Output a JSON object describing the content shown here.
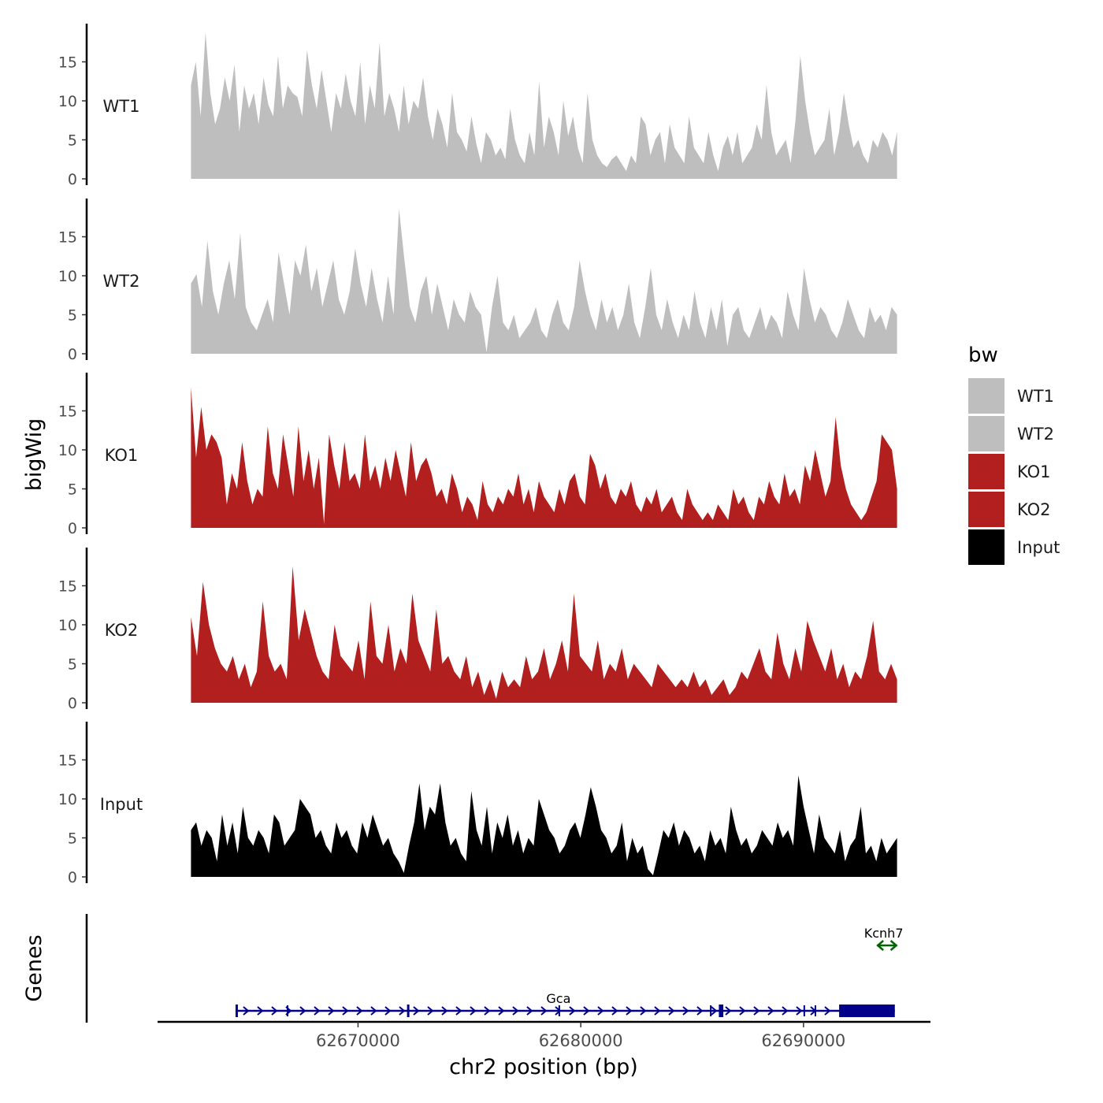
{
  "chart_data": {
    "type": "area",
    "xlabel": "chr2 position (bp)",
    "ylabel": "bigWig",
    "genes_label": "Genes",
    "xlim": [
      62661000,
      62695700
    ],
    "x_ticks": [
      {
        "value": 62670000,
        "label": "62670000"
      },
      {
        "value": 62680000,
        "label": "62680000"
      },
      {
        "value": 62690000,
        "label": "62690000"
      }
    ],
    "ylim": [
      0,
      20
    ],
    "y_ticks": [
      {
        "value": 0,
        "label": "0"
      },
      {
        "value": 5,
        "label": "5"
      },
      {
        "value": 10,
        "label": "10"
      },
      {
        "value": 15,
        "label": "15"
      }
    ],
    "x_start": 62662500,
    "x_end": 62694200,
    "legend": {
      "title": "bw",
      "items": [
        {
          "label": "WT1",
          "color": "#bebebe"
        },
        {
          "label": "WT2",
          "color": "#bebebe"
        },
        {
          "label": "KO1",
          "color": "#b21f1f"
        },
        {
          "label": "KO2",
          "color": "#b21f1f"
        },
        {
          "label": "Input",
          "color": "#000000"
        }
      ]
    },
    "series": [
      {
        "name": "WT1",
        "color": "#bebebe",
        "values": [
          12,
          15,
          8,
          18.8,
          11,
          7,
          9,
          13,
          10,
          14.7,
          6,
          12,
          9,
          11,
          7,
          13,
          9.5,
          8,
          15.8,
          9,
          12,
          11,
          10.5,
          8,
          16.5,
          12,
          9,
          14,
          10,
          6,
          11,
          9,
          13.5,
          10,
          8,
          15,
          7,
          12,
          9,
          17.5,
          8,
          11,
          9,
          6,
          12,
          7,
          10,
          9,
          13,
          8,
          5,
          9,
          7,
          4,
          11,
          6,
          5,
          3.5,
          8,
          4.5,
          2,
          6,
          5,
          3,
          4,
          2.5,
          9,
          5,
          3,
          2,
          6,
          3,
          12.5,
          4,
          8,
          6,
          3,
          10,
          5.5,
          8,
          4,
          2,
          11,
          5,
          3,
          2,
          1.5,
          2.5,
          3,
          2,
          1,
          3,
          2,
          8,
          7,
          3,
          5,
          6,
          2,
          7,
          4,
          3,
          2,
          8,
          4,
          3,
          2,
          6,
          3,
          1,
          4,
          5.5,
          3,
          6,
          2,
          3,
          4,
          7,
          5,
          12,
          6,
          3,
          4,
          5,
          2,
          7.5,
          15.8,
          10,
          6,
          3,
          4,
          5,
          9,
          3,
          6,
          11,
          7,
          4,
          5,
          3,
          2,
          5,
          4,
          6,
          5,
          3,
          6
        ]
      },
      {
        "name": "WT2",
        "color": "#bebebe",
        "values": [
          9,
          10.2,
          6,
          14.5,
          8,
          5,
          9,
          12,
          7,
          15.5,
          6,
          4,
          3,
          5,
          7,
          4,
          13,
          9,
          5,
          12,
          10,
          14,
          8,
          11,
          6,
          9,
          12,
          7,
          5,
          8,
          13.5,
          9,
          6,
          11,
          7,
          4,
          10,
          5,
          18.6,
          12,
          6,
          4,
          8,
          10,
          5,
          9,
          6,
          3,
          7,
          5,
          4,
          8,
          6,
          5,
          0.2,
          6,
          10,
          4,
          3,
          5,
          2,
          3,
          4,
          6,
          3,
          2,
          5,
          7,
          4,
          3,
          6,
          12,
          8,
          5,
          3,
          7,
          4,
          6,
          3,
          5,
          9,
          4,
          2,
          6,
          11,
          5,
          3,
          7,
          4,
          2,
          5,
          3,
          8,
          4,
          2,
          6,
          3,
          7,
          1,
          5,
          6,
          3,
          2,
          4,
          6,
          3,
          5,
          4,
          2,
          8,
          5,
          3,
          11,
          7,
          4,
          6,
          5,
          3,
          2,
          4,
          7,
          5,
          3,
          2,
          6,
          4,
          5,
          3,
          6,
          5
        ]
      },
      {
        "name": "KO1",
        "color": "#b21f1f",
        "values": [
          18,
          9,
          15.5,
          10,
          12,
          11,
          9,
          3,
          7,
          5,
          11,
          6,
          3,
          5,
          4,
          13,
          7,
          5,
          12,
          8,
          4,
          13,
          6,
          10,
          5,
          9,
          0.5,
          12,
          8,
          5,
          11,
          6,
          7,
          5,
          12,
          6,
          8,
          5,
          9,
          6,
          10,
          7,
          4,
          11,
          6,
          8,
          9,
          7,
          4,
          5,
          3,
          7,
          5,
          2,
          4,
          3,
          1,
          6,
          3,
          2,
          4,
          3,
          5,
          4,
          7,
          3,
          5,
          2,
          6,
          4,
          3,
          2,
          5,
          3,
          6,
          7,
          4,
          3,
          9.5,
          8,
          5,
          7,
          4,
          3,
          5,
          4,
          6,
          3,
          2,
          4,
          3,
          5,
          2,
          3,
          4,
          2,
          1,
          5,
          3,
          2,
          1,
          2,
          1,
          3,
          2,
          1,
          5,
          3,
          4,
          2,
          1,
          4,
          3,
          6,
          4,
          3,
          7,
          4,
          5,
          3,
          8,
          6,
          10,
          7,
          4,
          6,
          14.2,
          8,
          5,
          3,
          2,
          1,
          2,
          4,
          6,
          12,
          11,
          10,
          5
        ]
      },
      {
        "name": "KO2",
        "color": "#b21f1f",
        "values": [
          11,
          6,
          15.5,
          10,
          7,
          5,
          4,
          6,
          3,
          5,
          2,
          4,
          13,
          6,
          4,
          5,
          3,
          17.5,
          8,
          12,
          9,
          6,
          4,
          3,
          10,
          6,
          5,
          4,
          8,
          3,
          13,
          6,
          5,
          10,
          4,
          7,
          5,
          14,
          8,
          6,
          4,
          12,
          5,
          6,
          4,
          3,
          6,
          2,
          4,
          1,
          3,
          0.5,
          4,
          2,
          3,
          2,
          6,
          3,
          4,
          7,
          3,
          5,
          8,
          4,
          14,
          6,
          5,
          4,
          8,
          3,
          5,
          4,
          7,
          3,
          5,
          4,
          3,
          2,
          5,
          4,
          3,
          2,
          3,
          2,
          4,
          2,
          3,
          1,
          2,
          3,
          1,
          2,
          4,
          3,
          5,
          7,
          4,
          3,
          9,
          5,
          3,
          7,
          4,
          10.5,
          8,
          6,
          4,
          7,
          3,
          5,
          2,
          4,
          3,
          6,
          10.5,
          4,
          3,
          5,
          3
        ]
      },
      {
        "name": "Input",
        "color": "#000000",
        "values": [
          6,
          7,
          4,
          6,
          5,
          2,
          8,
          4,
          7,
          3,
          9,
          5,
          4,
          6,
          5,
          3,
          8,
          7,
          4,
          5,
          6,
          10,
          9,
          8,
          5,
          6,
          4,
          3,
          7,
          5,
          6,
          4,
          3,
          7,
          5,
          8,
          6,
          4,
          5,
          3,
          2,
          0.5,
          4,
          7,
          12,
          6,
          9,
          8,
          12,
          7,
          4,
          5,
          3,
          2,
          11,
          6,
          4,
          9,
          3,
          7,
          5,
          8,
          4,
          6,
          3,
          5,
          4,
          10,
          8,
          6,
          5,
          3,
          4,
          6,
          7,
          5,
          8,
          11.5,
          9,
          6,
          5,
          3,
          4,
          7,
          2,
          5,
          3,
          4,
          1,
          0.2,
          3,
          6,
          5,
          7,
          4,
          6,
          5,
          3,
          4,
          2,
          6,
          4,
          5,
          3,
          9,
          6,
          4,
          5,
          3,
          4,
          6,
          5,
          4,
          7,
          5,
          6,
          4,
          13,
          9,
          6,
          3,
          8,
          5,
          4,
          3,
          6,
          2,
          4,
          5,
          9,
          3,
          4,
          2,
          5,
          3,
          4,
          5
        ]
      }
    ],
    "genes": [
      {
        "name": "Gca",
        "start": 62664500,
        "end": 62694100,
        "strand": "+",
        "color": "#00008b",
        "label_x": 62679000,
        "exons": [
          {
            "start": 62664500,
            "end": 62664550,
            "thick": true
          },
          {
            "start": 62666800,
            "end": 62666850,
            "thick": false
          },
          {
            "start": 62672200,
            "end": 62672300,
            "thick": true
          },
          {
            "start": 62679000,
            "end": 62679050,
            "thick": false
          },
          {
            "start": 62685800,
            "end": 62685850,
            "thick": false
          },
          {
            "start": 62686200,
            "end": 62686400,
            "thick": true
          },
          {
            "start": 62690000,
            "end": 62690050,
            "thick": false
          },
          {
            "start": 62690500,
            "end": 62690550,
            "thick": false
          },
          {
            "start": 62691600,
            "end": 62694100,
            "thick": true
          }
        ]
      },
      {
        "name": "Kcnh7",
        "start": 62693300,
        "end": 62694200,
        "strand": "-",
        "color": "#006400",
        "label_x": 62693600,
        "exons": []
      }
    ]
  }
}
